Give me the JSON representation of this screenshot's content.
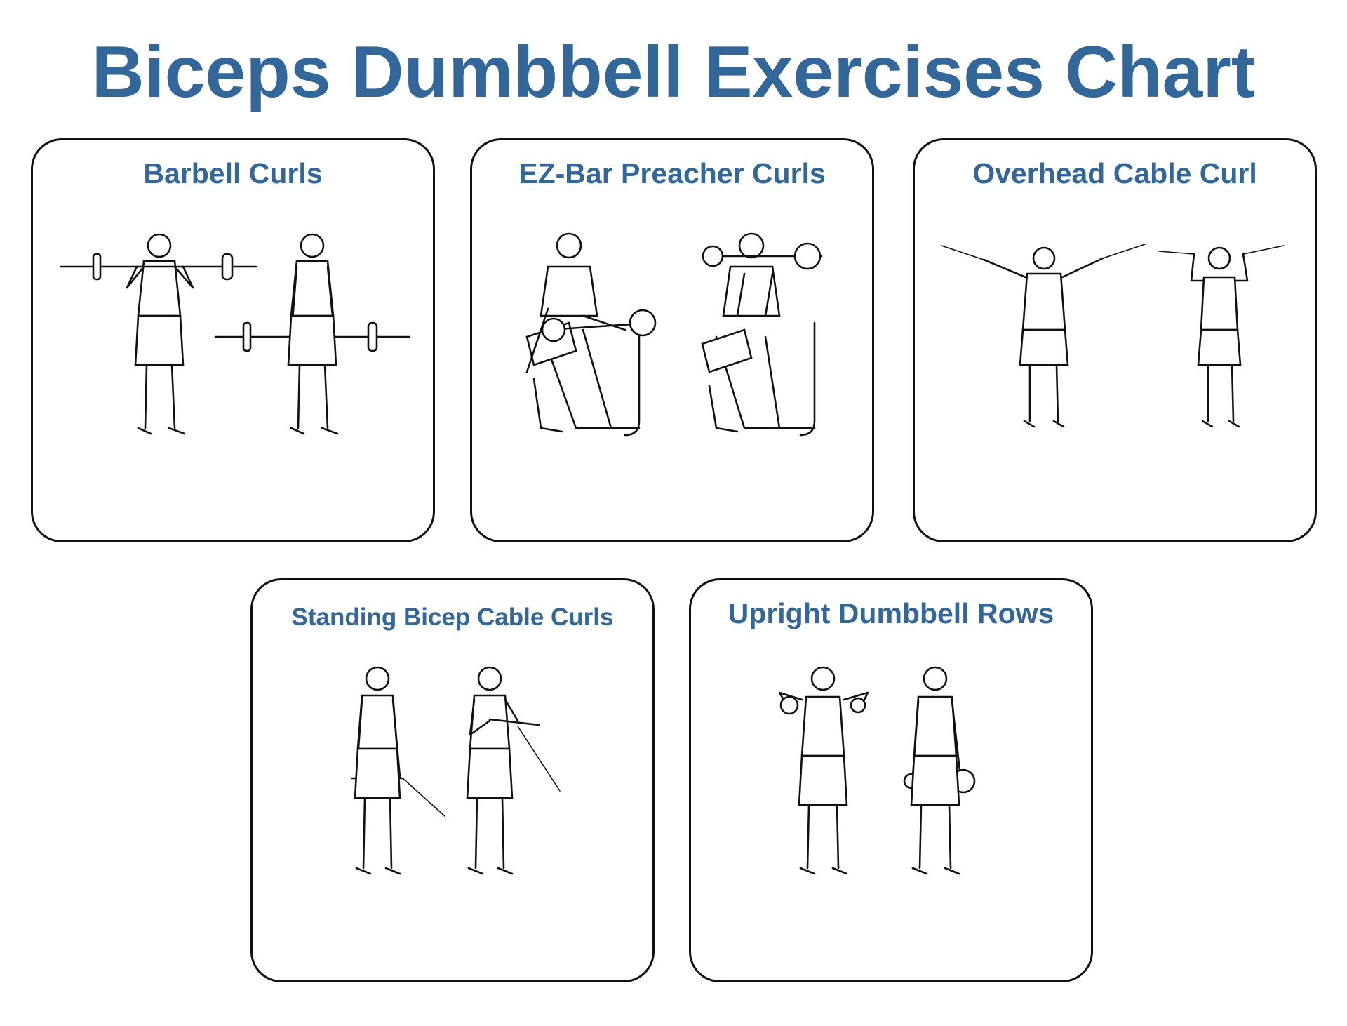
{
  "title": "Biceps Dumbbell Exercises Chart",
  "accent_color": "#336699",
  "exercises": [
    {
      "label": "Barbell Curls",
      "illustration": "barbell-curl-figures-icon"
    },
    {
      "label": "EZ-Bar Preacher Curls",
      "illustration": "preacher-curl-figures-icon"
    },
    {
      "label": "Overhead Cable Curl",
      "illustration": "overhead-cable-curl-figures-icon"
    },
    {
      "label": "Standing Bicep Cable Curls",
      "illustration": "standing-cable-curl-figures-icon"
    },
    {
      "label": "Upright Dumbbell Rows",
      "illustration": "upright-dumbbell-row-figures-icon"
    }
  ]
}
